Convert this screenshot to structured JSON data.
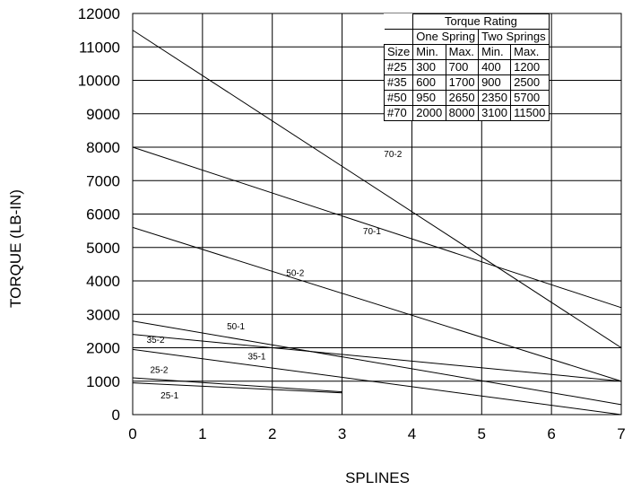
{
  "chart_data": {
    "type": "line",
    "xlabel": "SPLINES",
    "ylabel": "TORQUE (LB-IN)",
    "xlim": [
      0,
      7
    ],
    "ylim": [
      0,
      12000
    ],
    "x_ticks": [
      0,
      1,
      2,
      3,
      4,
      5,
      6,
      7
    ],
    "y_ticks": [
      0,
      1000,
      2000,
      3000,
      4000,
      5000,
      6000,
      7000,
      8000,
      9000,
      10000,
      11000,
      12000
    ],
    "grid": true,
    "series": [
      {
        "name": "70-2",
        "x": [
          0,
          7
        ],
        "y": [
          11500,
          2000
        ],
        "label_at": [
          3.6,
          7700
        ]
      },
      {
        "name": "70-1",
        "x": [
          0,
          7
        ],
        "y": [
          8000,
          3200
        ],
        "label_at": [
          3.3,
          5400
        ]
      },
      {
        "name": "50-2",
        "x": [
          0,
          7
        ],
        "y": [
          5600,
          1000
        ],
        "label_at": [
          2.2,
          4150
        ]
      },
      {
        "name": "50-1",
        "x": [
          0,
          7
        ],
        "y": [
          2800,
          300
        ],
        "label_at": [
          1.35,
          2550
        ]
      },
      {
        "name": "35-2",
        "x": [
          0,
          7
        ],
        "y": [
          2400,
          1000
        ],
        "label_at": [
          0.2,
          2150
        ]
      },
      {
        "name": "35-1",
        "x": [
          0,
          7
        ],
        "y": [
          1950,
          0
        ],
        "label_at": [
          1.65,
          1650
        ]
      },
      {
        "name": "25-2",
        "x": [
          0,
          3
        ],
        "y": [
          1100,
          680
        ],
        "label_at": [
          0.25,
          1250
        ]
      },
      {
        "name": "25-1",
        "x": [
          0,
          3
        ],
        "y": [
          950,
          650
        ],
        "label_at": [
          0.4,
          480
        ]
      }
    ]
  },
  "table": {
    "title": "Torque Rating",
    "group_headers": [
      "One Spring",
      "Two Springs"
    ],
    "columns": [
      "Size",
      "Min.",
      "Max.",
      "Min.",
      "Max."
    ],
    "rows": [
      [
        "#25",
        "300",
        "700",
        "400",
        "1200"
      ],
      [
        "#35",
        "600",
        "1700",
        "900",
        "2500"
      ],
      [
        "#50",
        "950",
        "2650",
        "2350",
        "5700"
      ],
      [
        "#70",
        "2000",
        "8000",
        "3100",
        "11500"
      ]
    ]
  }
}
